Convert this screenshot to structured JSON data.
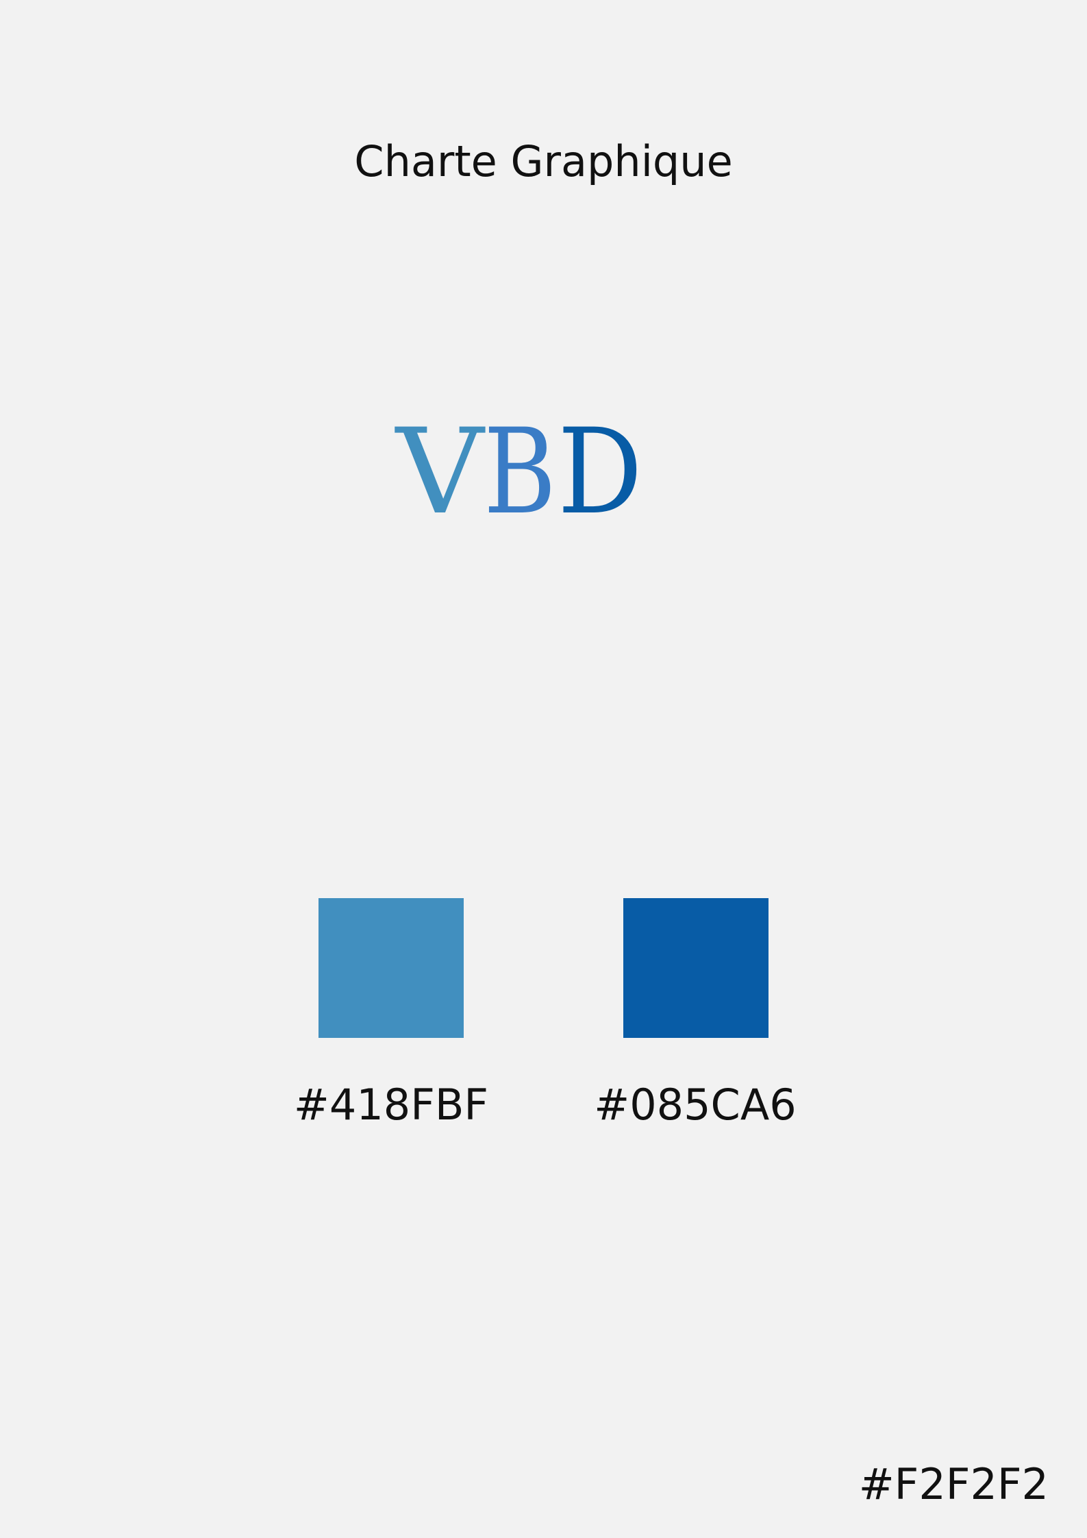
{
  "title": "Charte Graphique",
  "logo": {
    "text": "VBD",
    "letters": [
      "V",
      "B",
      "D"
    ],
    "letter_colors": [
      "#418FBF",
      "#3A7CC6",
      "#085CA6"
    ]
  },
  "palette": [
    {
      "hex": "#418FBF",
      "label": "#418FBF"
    },
    {
      "hex": "#085CA6",
      "label": "#085CA6"
    }
  ],
  "background": {
    "hex": "#F2F2F2",
    "label": "#F2F2F2"
  }
}
